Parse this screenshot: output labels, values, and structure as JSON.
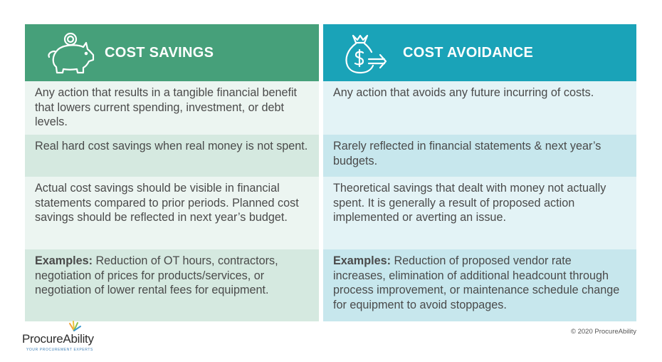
{
  "savings": {
    "title": "COST SAVINGS",
    "rows": [
      "Any action that results in a tangible financial benefit that lowers current spending, investment, or debt levels.",
      "Real hard cost savings when real money is not spent.",
      "Actual cost savings should be visible in financial statements compared to prior periods. Planned cost savings should be reflected in next year’s budget."
    ],
    "examples_label": "Examples:",
    "examples_text": " Reduction of OT hours, contractors, negotiation of prices for products/services, or negotiation of lower rental fees for equipment."
  },
  "avoidance": {
    "title": "COST AVOIDANCE",
    "rows": [
      "Any action that avoids any future incurring of costs.",
      "Rarely reflected in financial statements & next year’s budgets.",
      "Theoretical savings that dealt with money not actually spent. It is generally a result of proposed action implemented or averting an issue."
    ],
    "examples_label": "Examples:",
    "examples_text": " Reduction of proposed vendor rate increases, elimination of additional headcount through process improvement, or maintenance schedule change for equipment to avoid stoppages."
  },
  "logo": {
    "name": "ProcureAbility",
    "tagline": "YOUR PROCUREMENT EXPERTS"
  },
  "copyright": "© 2020 ProcureAbility",
  "colors": {
    "savings_header": "#46a07a",
    "avoidance_header": "#1aa3b8"
  },
  "icons": {
    "savings": "piggy-bank-icon",
    "avoidance": "money-bag-arrow-icon"
  }
}
